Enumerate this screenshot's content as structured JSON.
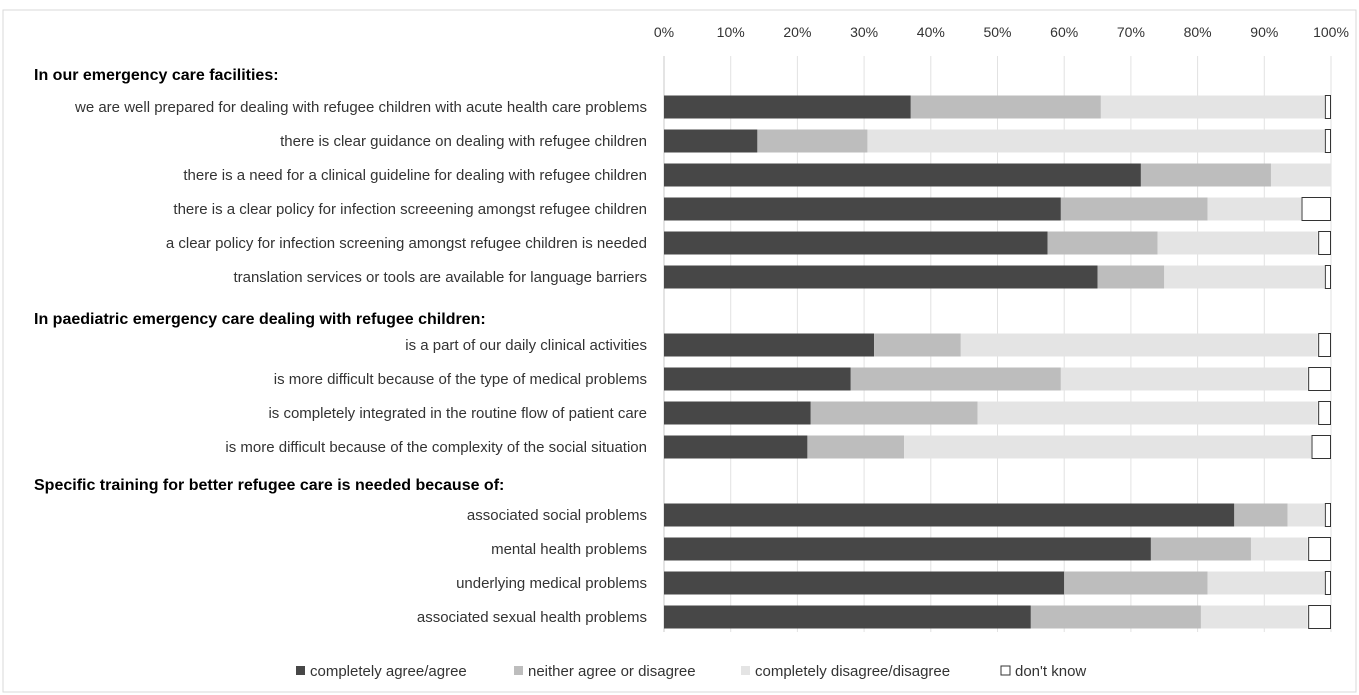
{
  "chart_data": {
    "type": "bar",
    "orientation": "horizontal",
    "stacked": true,
    "normalized_percent": true,
    "xlim": [
      0,
      100
    ],
    "x_ticks": [
      "0%",
      "10%",
      "20%",
      "30%",
      "40%",
      "50%",
      "60%",
      "70%",
      "80%",
      "90%",
      "100%"
    ],
    "grid": "vertical",
    "legend_position": "bottom",
    "series": [
      {
        "name": "completely agree/agree",
        "color": "#474747"
      },
      {
        "name": "neither agree or disagree",
        "color": "#bdbdbd"
      },
      {
        "name": "completely disagree/disagree",
        "color": "#e4e4e4"
      },
      {
        "name": "don't know",
        "color": "#ffffff"
      }
    ],
    "sections": [
      {
        "title": "In our emergency care facilities:",
        "rows": [
          {
            "label": "we are well prepared for dealing with refugee children with acute health care problems",
            "values": [
              37,
              28.5,
              33.5,
              1
            ]
          },
          {
            "label": "there is clear guidance on dealing with refugee children",
            "values": [
              14,
              16.5,
              68.5,
              1
            ]
          },
          {
            "label": "there is a need for a clinical guideline for dealing with refugee children",
            "values": [
              71.5,
              19.5,
              9,
              0
            ]
          },
          {
            "label": "there is a clear policy for infection screeening amongst refugee children",
            "values": [
              59.5,
              22,
              14,
              4.5
            ]
          },
          {
            "label": "a clear policy for infection screening amongst refugee children is needed",
            "values": [
              57.5,
              16.5,
              24,
              2
            ]
          },
          {
            "label": "translation services or tools are available for language barriers",
            "values": [
              65,
              10,
              24,
              1
            ]
          }
        ]
      },
      {
        "title": "In paediatric emergency care dealing with refugee children:",
        "rows": [
          {
            "label": "is a part of our daily clinical activities",
            "values": [
              31.5,
              13,
              53.5,
              2
            ]
          },
          {
            "label": "is more difficult because of the type of medical problems",
            "values": [
              28,
              31.5,
              37,
              3.5
            ]
          },
          {
            "label": "is completely integrated in the routine flow of patient care",
            "values": [
              22,
              25,
              51,
              2
            ]
          },
          {
            "label": "is more difficult because of the complexity of the social situation",
            "values": [
              21.5,
              14.5,
              61,
              3
            ]
          }
        ]
      },
      {
        "title": "Specific training for better refugee care is needed because of:",
        "rows": [
          {
            "label": "associated social problems",
            "values": [
              85.5,
              8,
              5.5,
              1
            ]
          },
          {
            "label": "mental health problems",
            "values": [
              73,
              15,
              8.5,
              3.5
            ]
          },
          {
            "label": "underlying medical problems",
            "values": [
              60,
              21.5,
              17.5,
              1
            ]
          },
          {
            "label": "associated sexual health problems",
            "values": [
              55,
              25.5,
              16,
              3.5
            ]
          }
        ]
      }
    ]
  }
}
